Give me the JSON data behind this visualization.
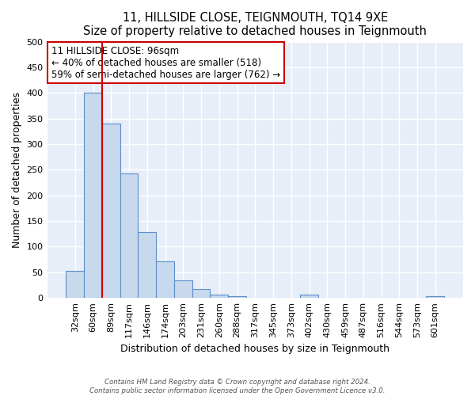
{
  "title": "11, HILLSIDE CLOSE, TEIGNMOUTH, TQ14 9XE",
  "subtitle": "Size of property relative to detached houses in Teignmouth",
  "xlabel": "Distribution of detached houses by size in Teignmouth",
  "ylabel": "Number of detached properties",
  "bar_labels": [
    "32sqm",
    "60sqm",
    "89sqm",
    "117sqm",
    "146sqm",
    "174sqm",
    "203sqm",
    "231sqm",
    "260sqm",
    "288sqm",
    "317sqm",
    "345sqm",
    "373sqm",
    "402sqm",
    "430sqm",
    "459sqm",
    "487sqm",
    "516sqm",
    "544sqm",
    "573sqm",
    "601sqm"
  ],
  "bar_values": [
    53,
    400,
    340,
    243,
    128,
    72,
    35,
    18,
    6,
    3,
    0,
    0,
    0,
    6,
    0,
    0,
    0,
    0,
    0,
    0,
    3
  ],
  "bar_color": "#c8d9ed",
  "bar_edge_color": "#5b8fc9",
  "vline_color": "#cc0000",
  "vline_pos": 1.5,
  "annotation_title": "11 HILLSIDE CLOSE: 96sqm",
  "annotation_line1": "← 40% of detached houses are smaller (518)",
  "annotation_line2": "59% of semi-detached houses are larger (762) →",
  "annotation_box_color": "#ffffff",
  "annotation_box_edge": "#cc0000",
  "ylim": [
    0,
    500
  ],
  "bg_color": "#e8eef7",
  "grid_color": "#ffffff",
  "footer1": "Contains HM Land Registry data © Crown copyright and database right 2024.",
  "footer2": "Contains public sector information licensed under the Open Government Licence v3.0."
}
